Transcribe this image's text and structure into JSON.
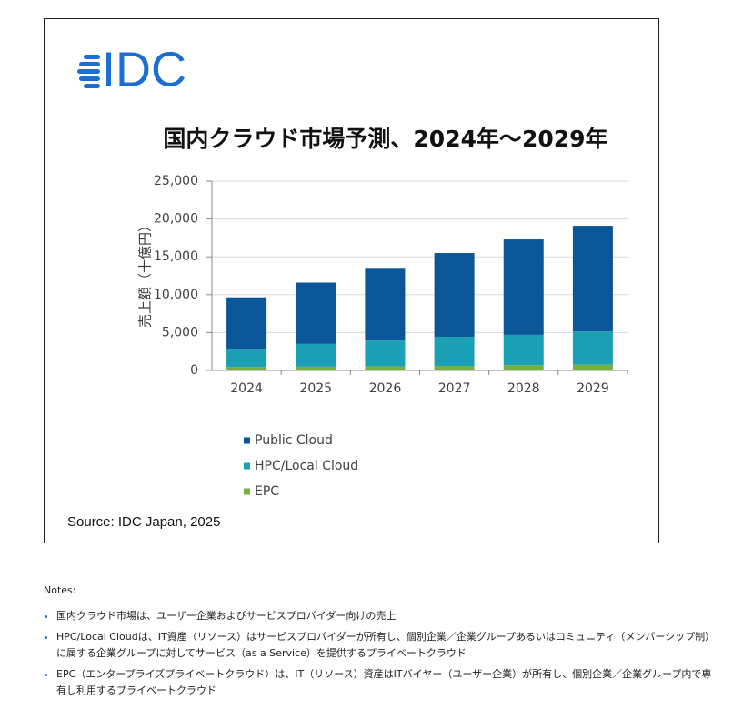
{
  "logo": "IDC",
  "chart_data": {
    "type": "stacked-bar",
    "title": "国内クラウド市場予測、2024年～2029年",
    "y_label": "売上額（十億円）",
    "categories": [
      "2024",
      "2025",
      "2026",
      "2027",
      "2028",
      "2029"
    ],
    "series": [
      {
        "name": "EPC",
        "color": "#76b043",
        "values": [
          450,
          500,
          550,
          600,
          700,
          750
        ]
      },
      {
        "name": "HPC/Local Cloud",
        "color": "#1b9fb5",
        "values": [
          2400,
          3000,
          3400,
          3850,
          4000,
          4400
        ]
      },
      {
        "name": "Public Cloud",
        "color": "#0b5599",
        "values": [
          6800,
          8100,
          9600,
          11050,
          12600,
          13950
        ]
      }
    ],
    "ylim": [
      0,
      25000
    ],
    "yticks": [
      0,
      {
        "value": 5000,
        "label": "5,000"
      },
      {
        "value": 10000,
        "label": "10,000"
      },
      {
        "value": 15000,
        "label": "15,000"
      },
      {
        "value": 20000,
        "label": "20,000"
      },
      {
        "value": 25000,
        "label": "25,000"
      }
    ],
    "grid": true,
    "source": "Source: IDC Japan, 2025"
  },
  "notes": {
    "title": "Notes:",
    "items": [
      "国内クラウド市場は、ユーザー企業およびサービスプロバイダー向けの売上",
      "HPC/Local Cloudは、IT資産（リソース）はサービスプロバイダーが所有し、個別企業／企業グループあるいはコミュニティ（メンバーシップ制）に属する企業グループに対してサービス（as a Service）を提供するプライベートクラウド",
      "EPC（エンタープライズプライベートクラウド）は、IT（リソース）資産はITバイヤー（ユーザー企業）が所有し、個別企業／企業グループ内で専有し利用するプライベートクラウド"
    ]
  }
}
